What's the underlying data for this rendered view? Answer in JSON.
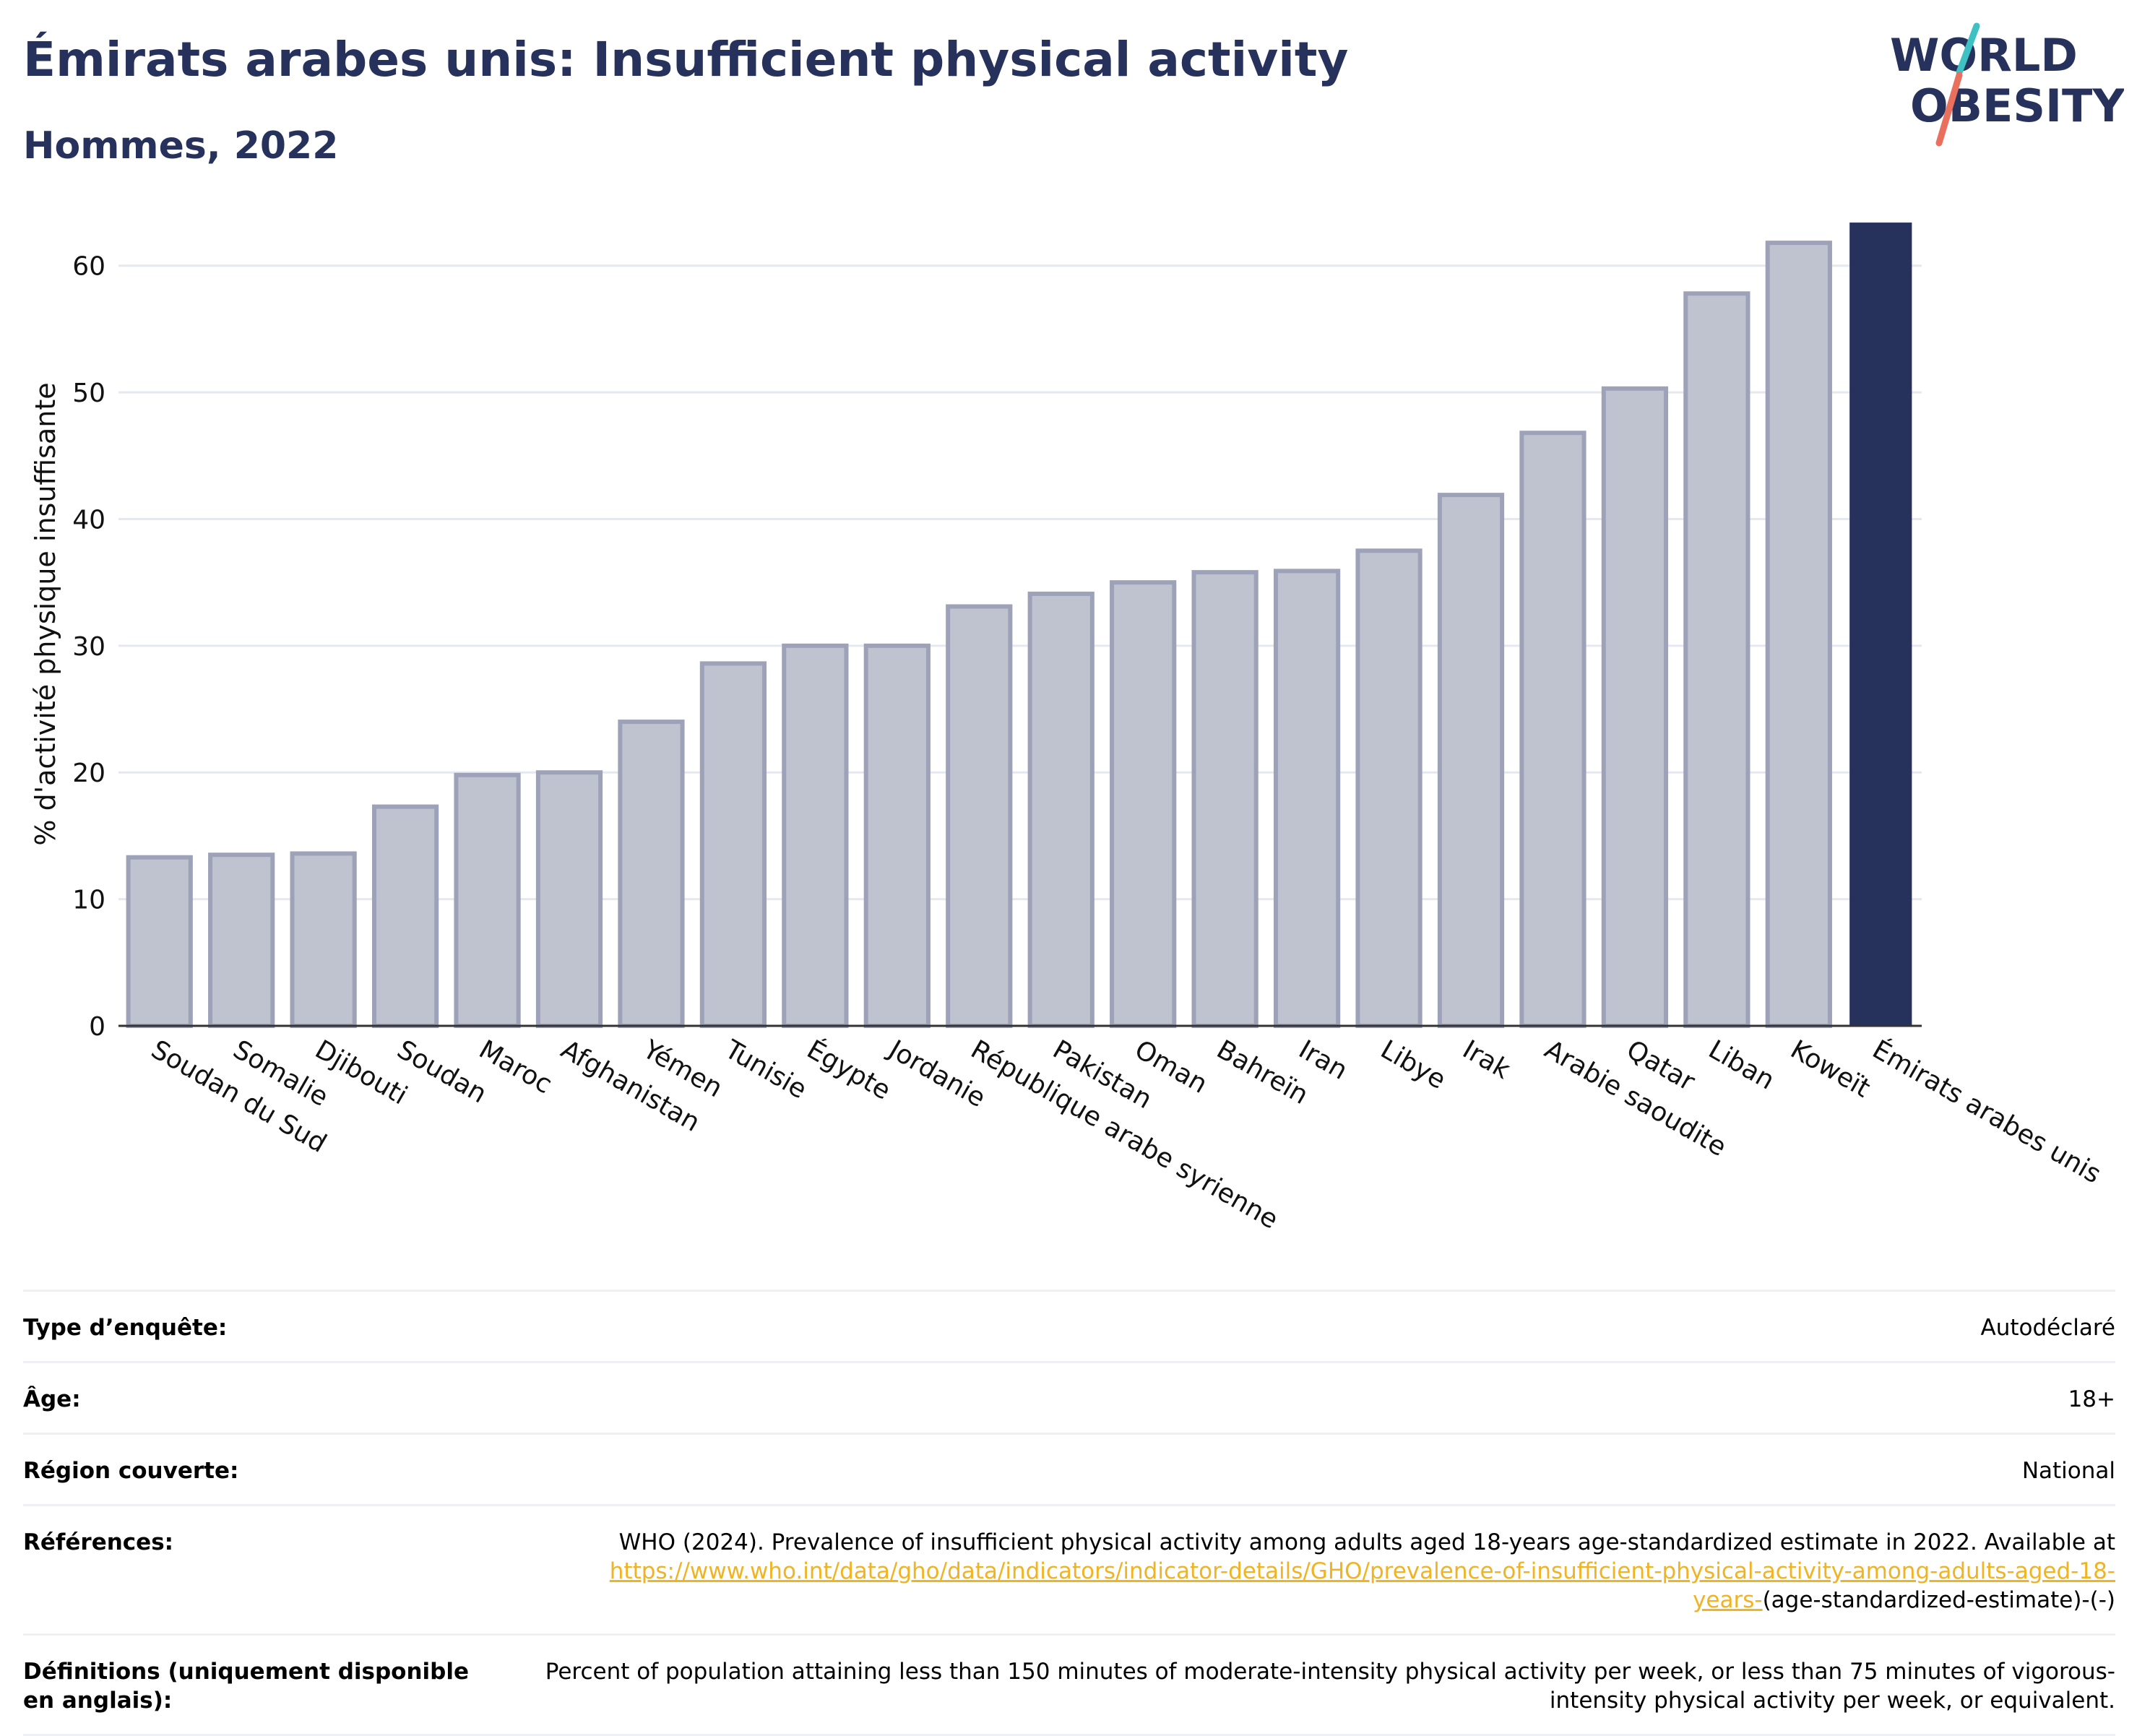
{
  "header": {
    "title": "Émirats arabes unis: Insufficient physical activity",
    "subtitle": "Hommes, 2022"
  },
  "logo": {
    "line1": "WORLD",
    "line2": "OBESITY"
  },
  "colors": {
    "highlight_bar": "#27325c",
    "other_bar_fill": "#bfc3d0",
    "other_bar_stroke": "#9da2b8",
    "title": "#27325c",
    "link": "#f0b323",
    "logo_teal": "#3ec1c3",
    "logo_coral": "#e8705d"
  },
  "chart_data": {
    "type": "bar",
    "title": "Émirats arabes unis: Insufficient physical activity",
    "subtitle": "Hommes, 2022",
    "ylabel": "% d'activité physique insuffisante",
    "xlabel": "",
    "ylim": [
      0,
      65
    ],
    "yticks": [
      0,
      10,
      20,
      30,
      40,
      50,
      60
    ],
    "grid": true,
    "highlight": "Émirats arabes unis",
    "categories": [
      "Soudan du Sud",
      "Somalie",
      "Djibouti",
      "Soudan",
      "Maroc",
      "Afghanistan",
      "Yémen",
      "Tunisie",
      "Égypte",
      "Jordanie",
      "République arabe syrienne",
      "Pakistan",
      "Oman",
      "Bahreïn",
      "Iran",
      "Libye",
      "Irak",
      "Arabie saoudite",
      "Qatar",
      "Liban",
      "Koweït",
      "Émirats arabes unis"
    ],
    "values": [
      13.3,
      13.5,
      13.6,
      17.3,
      19.8,
      20.0,
      24.0,
      28.6,
      30.0,
      30.0,
      33.1,
      34.1,
      35.0,
      35.8,
      35.9,
      37.5,
      41.9,
      46.8,
      50.3,
      57.8,
      61.8,
      63.4
    ]
  },
  "info": {
    "survey_type_label": "Type d’enquête:",
    "survey_type_value": "Autodéclaré",
    "age_label": "Âge:",
    "age_value": "18+",
    "region_label": "Région couverte:",
    "region_value": "National",
    "references_label": "Références:",
    "references_text": "WHO (2024). Prevalence of insufficient physical activity among adults aged 18-years age-standardized estimate in 2022. Available at",
    "references_link": "https://www.who.int/data/gho/data/indicators/indicator-details/GHO/prevalence-of-insufficient-physical-activity-among-adults-aged-18-years-",
    "references_suffix": "(age-standardized-estimate)-(-)",
    "definitions_label": "Définitions (uniquement disponible en anglais):",
    "definitions_value": "Percent of population attaining less than 150 minutes of moderate-intensity physical activity per week, or less than 75 minutes of vigorous-intensity physical activity per week, or equivalent."
  }
}
